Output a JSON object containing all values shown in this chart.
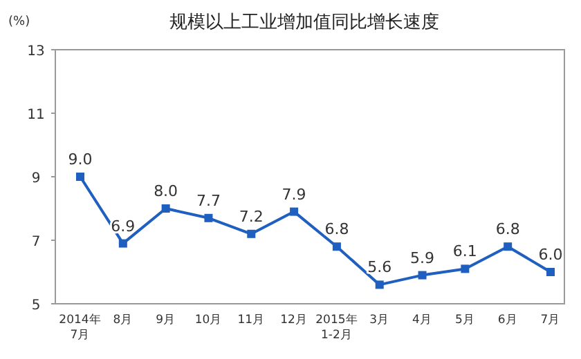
{
  "chart_data": {
    "type": "line",
    "title": "规模以上工业增加值同比增长速度",
    "ylabel": "(%)",
    "categories": [
      "2014年\n7月",
      "8月",
      "9月",
      "10月",
      "11月",
      "12月",
      "2015年\n1-2月",
      "3月",
      "4月",
      "5月",
      "6月",
      "7月"
    ],
    "series": [
      {
        "color": "#1f5fbf",
        "values": [
          9.0,
          6.9,
          8.0,
          7.7,
          7.2,
          7.9,
          6.8,
          5.6,
          5.9,
          6.1,
          6.8,
          6.0
        ],
        "value_labels": [
          "9.0",
          "6.9",
          "8.0",
          "7.7",
          "7.2",
          "7.9",
          "6.8",
          "5.6",
          "5.9",
          "6.1",
          "6.8",
          "6.0"
        ]
      }
    ],
    "ylim": [
      5,
      13
    ],
    "yticks": [
      5,
      7,
      9,
      11,
      13
    ],
    "grid": false,
    "marker": "square",
    "line_style": "solid"
  }
}
